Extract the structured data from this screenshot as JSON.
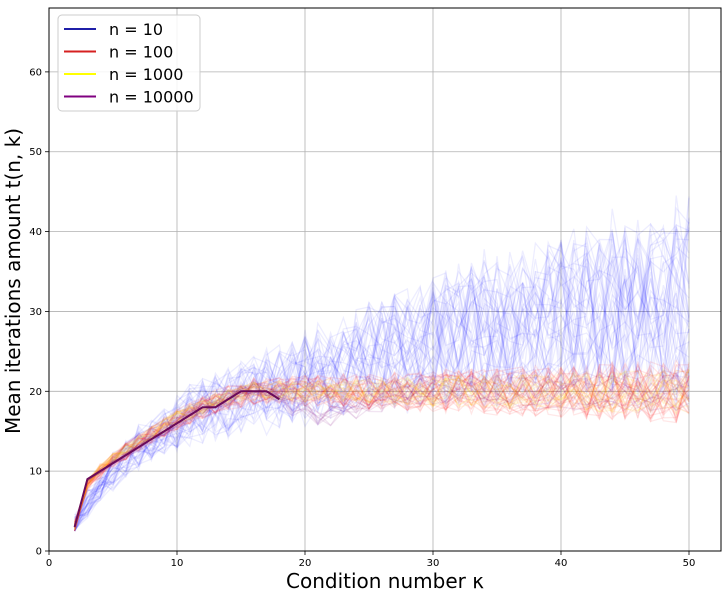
{
  "chart_data": {
    "type": "line",
    "xlabel": "Condition number κ",
    "ylabel": "Mean iterations amount t(n, k)",
    "xlim": [
      0,
      52.5
    ],
    "ylim": [
      0,
      68
    ],
    "x_ticks": [
      "0",
      "10",
      "20",
      "30",
      "40",
      "50"
    ],
    "y_ticks": [
      "0",
      "10",
      "20",
      "30",
      "40",
      "50",
      "60"
    ],
    "grid": true,
    "legend_position": "top-left",
    "x_range": [
      2,
      50
    ],
    "series": [
      {
        "name": "n = 10",
        "color": "#0000ff",
        "legend_color": "#1f1fa8",
        "mean": [
          3,
          6,
          8,
          10,
          11.5,
          13,
          14,
          15,
          16,
          17,
          17.5,
          18,
          18.5,
          19,
          19.5,
          20,
          20.5,
          21,
          21.5,
          22,
          22.5,
          23,
          23.5,
          24,
          24.5,
          25,
          25.5,
          26,
          26.5,
          27,
          27.3,
          27.6,
          28,
          28.2,
          28.5,
          28.8,
          29,
          29.2,
          29.5,
          29.7,
          30,
          30.2,
          30.4,
          30.6,
          30.8,
          31,
          31.2,
          31.4,
          31.5
        ],
        "spread_at_start": 1.5,
        "spread_at_end": 12
      },
      {
        "name": "n = 100",
        "color": "#ff0000",
        "legend_color": "#d62020",
        "mean": [
          3,
          8,
          10,
          11.5,
          12.5,
          13.5,
          14.5,
          15.5,
          16.5,
          17.2,
          18,
          18.6,
          19.2,
          19.6,
          20,
          20,
          20,
          20,
          20,
          20,
          20,
          20,
          20,
          20,
          20,
          20,
          20,
          20,
          20,
          20,
          20,
          20,
          20,
          20,
          20,
          20,
          20,
          20,
          20,
          20,
          20,
          20,
          20,
          20,
          20,
          20,
          20,
          20,
          20
        ],
        "spread_at_start": 0.8,
        "spread_at_end": 4
      },
      {
        "name": "n = 1000",
        "color": "#ffd000",
        "legend_color": "#ffff00",
        "mean": [
          3,
          8.5,
          10.2,
          11.6,
          12.7,
          13.7,
          14.7,
          15.7,
          16.6,
          17.4,
          18.1,
          18.7,
          19.3,
          19.7,
          20,
          20,
          20,
          20,
          20,
          20,
          20,
          20,
          20,
          20,
          20,
          20,
          20,
          20,
          20,
          20,
          20,
          20,
          20,
          20,
          20,
          20,
          20,
          20,
          20,
          20,
          20,
          20,
          20,
          20,
          20,
          20,
          20,
          20,
          20
        ],
        "spread_at_start": 0.5,
        "spread_at_end": 3
      },
      {
        "name": "n = 10000",
        "color": "#800080",
        "legend_color": "#800080",
        "mean": [
          3,
          9,
          10,
          11,
          12,
          13,
          14,
          15,
          16,
          17,
          18,
          18,
          19,
          20,
          20,
          20,
          19,
          18,
          18,
          17,
          17,
          18,
          18,
          19,
          19,
          20,
          20,
          20,
          20,
          20,
          20,
          20,
          20,
          20,
          20,
          20,
          20,
          20,
          20,
          20,
          20,
          20,
          20,
          20,
          20,
          20,
          20,
          20,
          20
        ],
        "spread_at_start": 0.2,
        "spread_at_end": 3
      }
    ]
  }
}
